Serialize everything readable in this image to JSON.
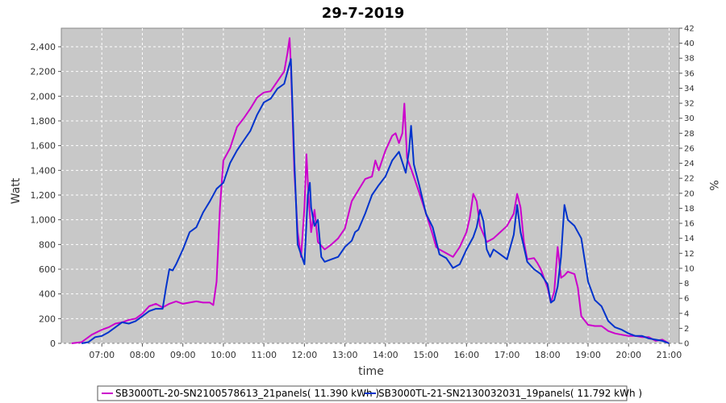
{
  "chart_data": {
    "type": "line",
    "title": "29-7-2019",
    "xlabel": "time",
    "ylabel": "Watt",
    "y2label": "%",
    "grid": true,
    "legend_placement": "bottom",
    "xlim": [
      "06:00",
      "21:15"
    ],
    "ylim": [
      0,
      2550
    ],
    "y2lim": [
      0,
      42
    ],
    "x_ticks": [
      "07:00",
      "08:00",
      "09:00",
      "10:00",
      "11:00",
      "12:00",
      "13:00",
      "14:00",
      "15:00",
      "16:00",
      "17:00",
      "18:00",
      "19:00",
      "20:00",
      "21:00"
    ],
    "y_ticks": [
      "0",
      "200",
      "400",
      "600",
      "800",
      "1,000",
      "1,200",
      "1,400",
      "1,600",
      "1,800",
      "2,000",
      "2,200",
      "2,400"
    ],
    "y2_ticks": [
      "0",
      "2",
      "4",
      "6",
      "8",
      "10",
      "12",
      "14",
      "16",
      "18",
      "20",
      "22",
      "24",
      "26",
      "28",
      "30",
      "32",
      "34",
      "36",
      "38",
      "40",
      "42"
    ],
    "colors": {
      "plot_bg": "#c8c8c8",
      "grid": "#ffffff"
    },
    "series": [
      {
        "name": "SB3000TL-20-SN2100578613_21panels( 11.390 kWh )",
        "color": "#cc00cc",
        "points": [
          [
            "06:15",
            0
          ],
          [
            "06:30",
            10
          ],
          [
            "06:45",
            70
          ],
          [
            "07:00",
            110
          ],
          [
            "07:10",
            130
          ],
          [
            "07:20",
            160
          ],
          [
            "07:30",
            170
          ],
          [
            "07:40",
            190
          ],
          [
            "07:50",
            200
          ],
          [
            "08:00",
            240
          ],
          [
            "08:10",
            300
          ],
          [
            "08:20",
            320
          ],
          [
            "08:30",
            290
          ],
          [
            "08:40",
            320
          ],
          [
            "08:50",
            340
          ],
          [
            "09:00",
            320
          ],
          [
            "09:10",
            330
          ],
          [
            "09:20",
            340
          ],
          [
            "09:30",
            330
          ],
          [
            "09:40",
            330
          ],
          [
            "09:45",
            310
          ],
          [
            "09:50",
            500
          ],
          [
            "09:55",
            1100
          ],
          [
            "10:00",
            1480
          ],
          [
            "10:10",
            1580
          ],
          [
            "10:20",
            1750
          ],
          [
            "10:30",
            1820
          ],
          [
            "10:40",
            1900
          ],
          [
            "10:50",
            1990
          ],
          [
            "11:00",
            2030
          ],
          [
            "11:10",
            2040
          ],
          [
            "11:20",
            2120
          ],
          [
            "11:30",
            2200
          ],
          [
            "11:35",
            2350
          ],
          [
            "11:38",
            2470
          ],
          [
            "11:40",
            2250
          ],
          [
            "11:45",
            1400
          ],
          [
            "11:50",
            900
          ],
          [
            "11:55",
            700
          ],
          [
            "12:00",
            1100
          ],
          [
            "12:03",
            1530
          ],
          [
            "12:06",
            1200
          ],
          [
            "12:10",
            900
          ],
          [
            "12:15",
            1080
          ],
          [
            "12:20",
            820
          ],
          [
            "12:30",
            760
          ],
          [
            "12:40",
            800
          ],
          [
            "12:50",
            850
          ],
          [
            "13:00",
            930
          ],
          [
            "13:10",
            1150
          ],
          [
            "13:20",
            1240
          ],
          [
            "13:30",
            1330
          ],
          [
            "13:40",
            1350
          ],
          [
            "13:45",
            1480
          ],
          [
            "13:50",
            1400
          ],
          [
            "14:00",
            1560
          ],
          [
            "14:10",
            1680
          ],
          [
            "14:15",
            1700
          ],
          [
            "14:20",
            1620
          ],
          [
            "14:25",
            1700
          ],
          [
            "14:28",
            1940
          ],
          [
            "14:32",
            1500
          ],
          [
            "14:40",
            1380
          ],
          [
            "14:50",
            1220
          ],
          [
            "15:00",
            1050
          ],
          [
            "15:10",
            880
          ],
          [
            "15:15",
            780
          ],
          [
            "15:20",
            760
          ],
          [
            "15:30",
            730
          ],
          [
            "15:40",
            700
          ],
          [
            "15:50",
            780
          ],
          [
            "16:00",
            900
          ],
          [
            "16:05",
            1020
          ],
          [
            "16:10",
            1210
          ],
          [
            "16:15",
            1150
          ],
          [
            "16:20",
            950
          ],
          [
            "16:30",
            820
          ],
          [
            "16:40",
            850
          ],
          [
            "16:50",
            900
          ],
          [
            "17:00",
            950
          ],
          [
            "17:10",
            1050
          ],
          [
            "17:15",
            1210
          ],
          [
            "17:20",
            1100
          ],
          [
            "17:25",
            820
          ],
          [
            "17:30",
            680
          ],
          [
            "17:40",
            690
          ],
          [
            "17:45",
            650
          ],
          [
            "17:50",
            600
          ],
          [
            "18:00",
            450
          ],
          [
            "18:05",
            330
          ],
          [
            "18:10",
            420
          ],
          [
            "18:15",
            780
          ],
          [
            "18:20",
            530
          ],
          [
            "18:25",
            550
          ],
          [
            "18:30",
            580
          ],
          [
            "18:40",
            560
          ],
          [
            "18:45",
            450
          ],
          [
            "18:50",
            220
          ],
          [
            "19:00",
            150
          ],
          [
            "19:10",
            140
          ],
          [
            "19:20",
            140
          ],
          [
            "19:30",
            100
          ],
          [
            "19:40",
            80
          ],
          [
            "19:50",
            70
          ],
          [
            "20:00",
            60
          ],
          [
            "20:10",
            60
          ],
          [
            "20:20",
            50
          ],
          [
            "20:30",
            50
          ],
          [
            "20:40",
            20
          ],
          [
            "20:50",
            30
          ],
          [
            "21:00",
            0
          ]
        ]
      },
      {
        "name": "SB3000TL-21-SN2130032031_19panels( 11.792 kWh )",
        "color": "#0033cc",
        "points": [
          [
            "06:30",
            0
          ],
          [
            "06:40",
            10
          ],
          [
            "06:50",
            50
          ],
          [
            "07:00",
            60
          ],
          [
            "07:10",
            90
          ],
          [
            "07:20",
            130
          ],
          [
            "07:30",
            170
          ],
          [
            "07:40",
            160
          ],
          [
            "07:50",
            180
          ],
          [
            "08:00",
            220
          ],
          [
            "08:10",
            260
          ],
          [
            "08:20",
            280
          ],
          [
            "08:30",
            280
          ],
          [
            "08:35",
            450
          ],
          [
            "08:40",
            600
          ],
          [
            "08:45",
            590
          ],
          [
            "08:50",
            640
          ],
          [
            "09:00",
            760
          ],
          [
            "09:10",
            900
          ],
          [
            "09:20",
            940
          ],
          [
            "09:30",
            1060
          ],
          [
            "09:40",
            1150
          ],
          [
            "09:50",
            1250
          ],
          [
            "10:00",
            1300
          ],
          [
            "10:10",
            1460
          ],
          [
            "10:20",
            1560
          ],
          [
            "10:30",
            1640
          ],
          [
            "10:40",
            1720
          ],
          [
            "10:50",
            1850
          ],
          [
            "11:00",
            1950
          ],
          [
            "11:10",
            1980
          ],
          [
            "11:20",
            2060
          ],
          [
            "11:30",
            2100
          ],
          [
            "11:35",
            2200
          ],
          [
            "11:40",
            2300
          ],
          [
            "11:45",
            1500
          ],
          [
            "11:50",
            800
          ],
          [
            "12:00",
            640
          ],
          [
            "12:05",
            1200
          ],
          [
            "12:08",
            1300
          ],
          [
            "12:10",
            1100
          ],
          [
            "12:15",
            950
          ],
          [
            "12:20",
            1000
          ],
          [
            "12:25",
            700
          ],
          [
            "12:30",
            660
          ],
          [
            "12:40",
            680
          ],
          [
            "12:50",
            700
          ],
          [
            "13:00",
            780
          ],
          [
            "13:10",
            830
          ],
          [
            "13:15",
            900
          ],
          [
            "13:20",
            920
          ],
          [
            "13:30",
            1050
          ],
          [
            "13:40",
            1200
          ],
          [
            "13:50",
            1280
          ],
          [
            "14:00",
            1350
          ],
          [
            "14:10",
            1480
          ],
          [
            "14:20",
            1550
          ],
          [
            "14:30",
            1380
          ],
          [
            "14:35",
            1560
          ],
          [
            "14:38",
            1760
          ],
          [
            "14:42",
            1450
          ],
          [
            "14:50",
            1280
          ],
          [
            "15:00",
            1050
          ],
          [
            "15:10",
            940
          ],
          [
            "15:20",
            720
          ],
          [
            "15:30",
            690
          ],
          [
            "15:40",
            610
          ],
          [
            "15:50",
            640
          ],
          [
            "16:00",
            760
          ],
          [
            "16:10",
            860
          ],
          [
            "16:15",
            940
          ],
          [
            "16:20",
            1080
          ],
          [
            "16:25",
            990
          ],
          [
            "16:30",
            760
          ],
          [
            "16:35",
            700
          ],
          [
            "16:40",
            760
          ],
          [
            "16:50",
            720
          ],
          [
            "17:00",
            680
          ],
          [
            "17:10",
            880
          ],
          [
            "17:15",
            1120
          ],
          [
            "17:20",
            900
          ],
          [
            "17:30",
            660
          ],
          [
            "17:40",
            600
          ],
          [
            "17:50",
            560
          ],
          [
            "18:00",
            480
          ],
          [
            "18:05",
            330
          ],
          [
            "18:10",
            350
          ],
          [
            "18:15",
            460
          ],
          [
            "18:20",
            700
          ],
          [
            "18:25",
            1120
          ],
          [
            "18:30",
            1000
          ],
          [
            "18:40",
            950
          ],
          [
            "18:50",
            850
          ],
          [
            "19:00",
            500
          ],
          [
            "19:10",
            350
          ],
          [
            "19:20",
            300
          ],
          [
            "19:30",
            180
          ],
          [
            "19:40",
            130
          ],
          [
            "19:50",
            110
          ],
          [
            "20:00",
            80
          ],
          [
            "20:10",
            60
          ],
          [
            "20:20",
            60
          ],
          [
            "20:30",
            40
          ],
          [
            "20:40",
            30
          ],
          [
            "20:50",
            20
          ],
          [
            "21:00",
            0
          ]
        ]
      }
    ]
  }
}
